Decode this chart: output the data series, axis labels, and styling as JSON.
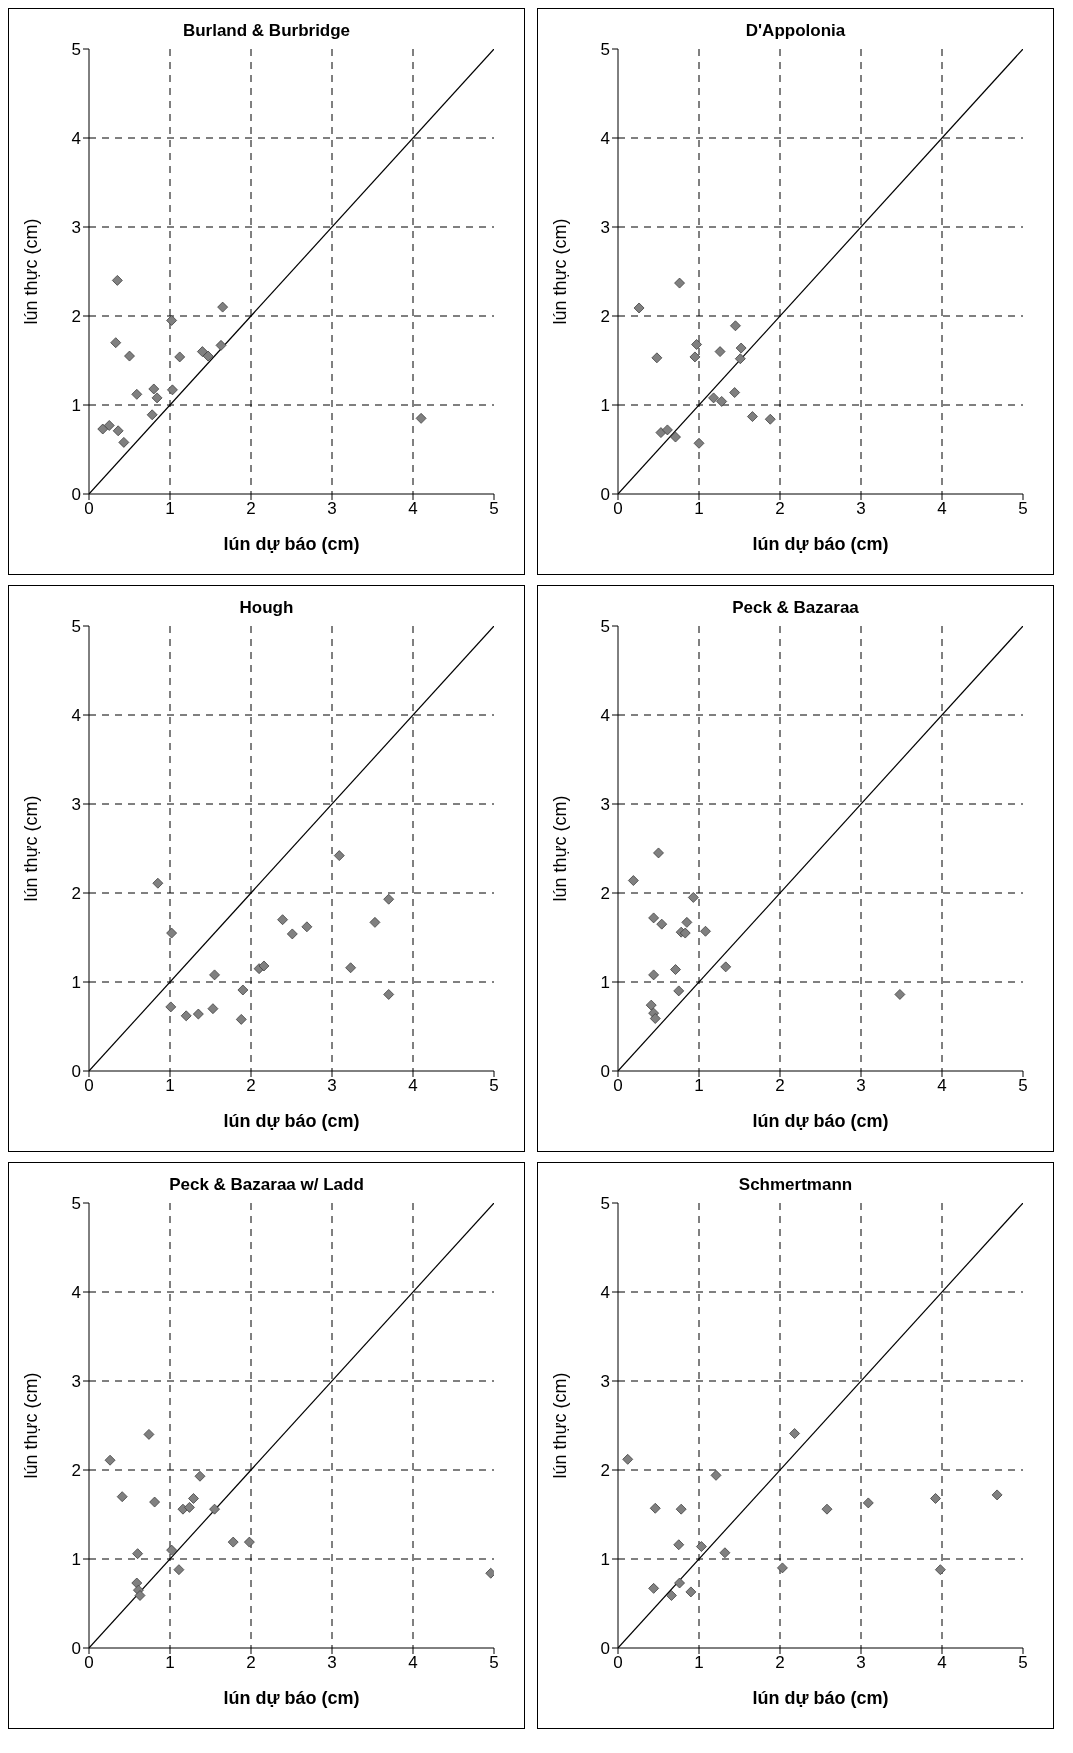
{
  "chart_data": [
    {
      "type": "scatter",
      "title": "Burland & Burbridge",
      "xlabel": "lún dự báo (cm)",
      "ylabel": "lún thực (cm)",
      "xlim": [
        0,
        5
      ],
      "ylim": [
        0,
        5
      ],
      "xticks": [
        0,
        1,
        2,
        3,
        4,
        5
      ],
      "yticks": [
        0,
        1,
        2,
        3,
        4,
        5
      ],
      "grid": true,
      "series": [
        {
          "color": "#808080",
          "marker": "diamond",
          "x": [
            0.35,
            1.65,
            1.02,
            0.33,
            0.5,
            1.12,
            1.4,
            1.47,
            1.63,
            0.59,
            0.8,
            0.84,
            1.03,
            0.78,
            0.17,
            0.25,
            0.36,
            0.43,
            4.1
          ],
          "values": [
            2.4,
            2.1,
            1.95,
            1.7,
            1.55,
            1.54,
            1.6,
            1.55,
            1.67,
            1.12,
            1.18,
            1.08,
            1.17,
            0.89,
            0.73,
            0.77,
            0.71,
            0.58,
            0.85
          ]
        },
        {
          "type": "line",
          "color": "#000000",
          "marker": "none",
          "x": [
            0,
            5
          ],
          "values": [
            0,
            5
          ]
        }
      ]
    },
    {
      "type": "scatter",
      "title": "D'Appolonia",
      "xlabel": "lún dự báo (cm)",
      "ylabel": "lún thực (cm)",
      "xlim": [
        0,
        5
      ],
      "ylim": [
        0,
        5
      ],
      "xticks": [
        0,
        1,
        2,
        3,
        4,
        5
      ],
      "yticks": [
        0,
        1,
        2,
        3,
        4,
        5
      ],
      "grid": true,
      "series": [
        {
          "color": "#808080",
          "marker": "diamond",
          "x": [
            0.26,
            0.76,
            0.48,
            0.97,
            0.95,
            1.26,
            1.45,
            1.52,
            1.51,
            1.18,
            1.28,
            1.44,
            1.66,
            1.88,
            0.53,
            0.61,
            0.71,
            1.0
          ],
          "values": [
            2.09,
            2.37,
            1.53,
            1.68,
            1.54,
            1.6,
            1.89,
            1.64,
            1.52,
            1.08,
            1.04,
            1.14,
            0.87,
            0.84,
            0.69,
            0.72,
            0.64,
            0.57
          ]
        },
        {
          "type": "line",
          "color": "#000000",
          "marker": "none",
          "x": [
            0,
            5
          ],
          "values": [
            0,
            5
          ]
        }
      ]
    },
    {
      "type": "scatter",
      "title": "Hough",
      "xlabel": "lún dự báo (cm)",
      "ylabel": "lún thực (cm)",
      "xlim": [
        0,
        5
      ],
      "ylim": [
        0,
        5
      ],
      "xticks": [
        0,
        1,
        2,
        3,
        4,
        5
      ],
      "yticks": [
        0,
        1,
        2,
        3,
        4,
        5
      ],
      "grid": true,
      "series": [
        {
          "color": "#808080",
          "marker": "diamond",
          "x": [
            0.85,
            1.02,
            3.09,
            3.7,
            3.53,
            2.39,
            2.51,
            2.69,
            2.1,
            2.16,
            3.23,
            3.7,
            1.55,
            1.9,
            1.01,
            1.2,
            1.35,
            1.53,
            1.88
          ],
          "values": [
            2.11,
            1.55,
            2.42,
            1.93,
            1.67,
            1.7,
            1.54,
            1.62,
            1.15,
            1.18,
            1.16,
            0.86,
            1.08,
            0.91,
            0.72,
            0.62,
            0.64,
            0.7,
            0.58
          ]
        },
        {
          "type": "line",
          "color": "#000000",
          "marker": "none",
          "x": [
            0,
            5
          ],
          "values": [
            0,
            5
          ]
        }
      ]
    },
    {
      "type": "scatter",
      "title": "Peck & Bazaraa",
      "xlabel": "lún dự báo (cm)",
      "ylabel": "lún thực (cm)",
      "xlim": [
        0,
        5
      ],
      "ylim": [
        0,
        5
      ],
      "xticks": [
        0,
        1,
        2,
        3,
        4,
        5
      ],
      "yticks": [
        0,
        1,
        2,
        3,
        4,
        5
      ],
      "grid": true,
      "series": [
        {
          "color": "#808080",
          "marker": "diamond",
          "x": [
            0.19,
            0.5,
            0.93,
            0.44,
            0.54,
            0.78,
            0.85,
            0.83,
            1.08,
            1.33,
            0.44,
            0.71,
            0.75,
            0.41,
            0.44,
            0.46,
            3.48
          ],
          "values": [
            2.14,
            2.45,
            1.95,
            1.72,
            1.65,
            1.56,
            1.67,
            1.55,
            1.57,
            1.17,
            1.08,
            1.14,
            0.9,
            0.74,
            0.65,
            0.59,
            0.86
          ]
        },
        {
          "type": "line",
          "color": "#000000",
          "marker": "none",
          "x": [
            0,
            5
          ],
          "values": [
            0,
            5
          ]
        }
      ]
    },
    {
      "type": "scatter",
      "title": "Peck & Bazaraa w/ Ladd",
      "xlabel": "lún dự báo (cm)",
      "ylabel": "lún thực (cm)",
      "xlim": [
        0,
        5
      ],
      "ylim": [
        0,
        5
      ],
      "xticks": [
        0,
        1,
        2,
        3,
        4,
        5
      ],
      "yticks": [
        0,
        1,
        2,
        3,
        4,
        5
      ],
      "grid": true,
      "series": [
        {
          "color": "#808080",
          "marker": "diamond",
          "x": [
            0.26,
            0.74,
            0.41,
            0.81,
            1.37,
            1.16,
            1.24,
            1.29,
            1.55,
            1.78,
            1.98,
            0.6,
            1.02,
            1.11,
            0.59,
            0.61,
            0.63,
            4.96
          ],
          "values": [
            2.11,
            2.4,
            1.7,
            1.64,
            1.93,
            1.56,
            1.58,
            1.68,
            1.56,
            1.19,
            1.19,
            1.06,
            1.1,
            0.88,
            0.73,
            0.65,
            0.59,
            0.84
          ]
        },
        {
          "type": "line",
          "color": "#000000",
          "marker": "none",
          "x": [
            0,
            5
          ],
          "values": [
            0,
            5
          ]
        }
      ]
    },
    {
      "type": "scatter",
      "title": "Schmertmann",
      "xlabel": "lún dự báo (cm)",
      "ylabel": "lún thực (cm)",
      "xlim": [
        0,
        5
      ],
      "ylim": [
        0,
        5
      ],
      "xticks": [
        0,
        1,
        2,
        3,
        4,
        5
      ],
      "yticks": [
        0,
        1,
        2,
        3,
        4,
        5
      ],
      "grid": true,
      "series": [
        {
          "color": "#808080",
          "marker": "diamond",
          "x": [
            0.12,
            2.18,
            1.21,
            0.46,
            0.78,
            2.58,
            3.09,
            3.92,
            4.68,
            0.75,
            1.03,
            1.32,
            2.03,
            3.98,
            0.44,
            0.66,
            0.76,
            0.9
          ],
          "values": [
            2.12,
            2.41,
            1.94,
            1.57,
            1.56,
            1.56,
            1.63,
            1.68,
            1.72,
            1.16,
            1.14,
            1.07,
            0.9,
            0.88,
            0.67,
            0.59,
            0.73,
            0.63
          ]
        },
        {
          "type": "line",
          "color": "#000000",
          "marker": "none",
          "x": [
            0,
            5
          ],
          "values": [
            0,
            5
          ]
        }
      ]
    }
  ]
}
